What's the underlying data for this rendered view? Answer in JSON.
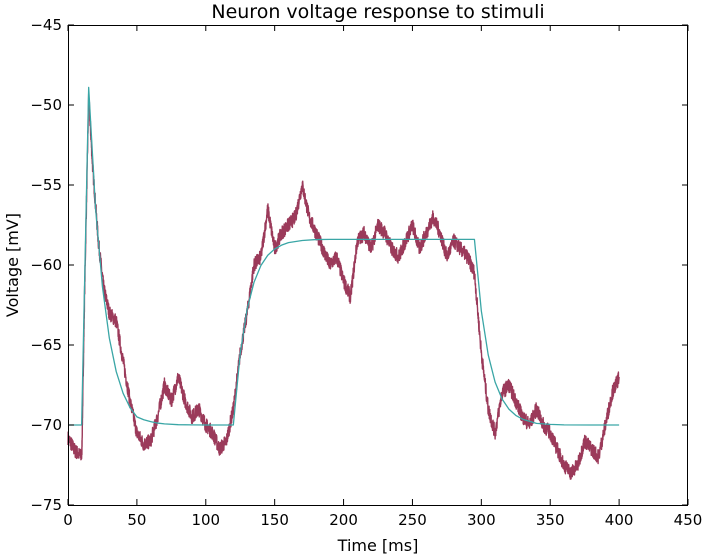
{
  "chart_data": {
    "type": "line",
    "title": "Neuron voltage response to stimuli",
    "xlabel": "Time [ms]",
    "ylabel": "Voltage [mV]",
    "xlim": [
      0,
      450
    ],
    "ylim": [
      -75,
      -45
    ],
    "xticks": [
      "0",
      "50",
      "100",
      "150",
      "200",
      "250",
      "300",
      "350",
      "400",
      "450"
    ],
    "yticks": [
      "−75",
      "−70",
      "−65",
      "−60",
      "−55",
      "−50",
      "−45"
    ],
    "grid": false,
    "legend": "none",
    "series": [
      {
        "color": "#9b3a5a",
        "style": "noisy",
        "x": [
          0,
          5,
          10,
          12,
          15,
          18,
          22,
          26,
          30,
          35,
          40,
          45,
          50,
          55,
          60,
          65,
          70,
          75,
          80,
          85,
          90,
          95,
          100,
          105,
          110,
          115,
          120,
          125,
          130,
          135,
          140,
          145,
          150,
          155,
          160,
          165,
          170,
          175,
          180,
          185,
          190,
          195,
          200,
          205,
          210,
          215,
          220,
          225,
          230,
          235,
          240,
          245,
          250,
          255,
          260,
          265,
          270,
          275,
          280,
          285,
          290,
          295,
          300,
          305,
          310,
          315,
          320,
          325,
          330,
          335,
          340,
          345,
          350,
          355,
          360,
          365,
          370,
          375,
          380,
          385,
          390,
          395,
          400
        ],
        "y": [
          -70.8,
          -71.6,
          -72.0,
          -62.0,
          -49.5,
          -54.0,
          -58.5,
          -61.5,
          -63.0,
          -63.5,
          -66.0,
          -68.5,
          -70.5,
          -71.2,
          -71.0,
          -69.5,
          -67.5,
          -68.5,
          -67.0,
          -68.5,
          -69.5,
          -69.0,
          -70.0,
          -70.5,
          -71.5,
          -71.0,
          -69.0,
          -65.5,
          -63.0,
          -60.0,
          -59.5,
          -56.5,
          -59.0,
          -58.0,
          -57.5,
          -57.0,
          -55.0,
          -57.0,
          -58.0,
          -59.0,
          -60.0,
          -59.5,
          -61.0,
          -62.0,
          -58.5,
          -58.0,
          -59.0,
          -57.5,
          -58.0,
          -59.0,
          -59.5,
          -58.5,
          -57.5,
          -59.0,
          -58.0,
          -57.0,
          -58.0,
          -59.5,
          -58.5,
          -59.0,
          -59.5,
          -60.5,
          -65.5,
          -69.0,
          -70.5,
          -68.0,
          -67.5,
          -68.5,
          -69.5,
          -70.0,
          -69.0,
          -70.0,
          -70.5,
          -71.5,
          -72.5,
          -73.0,
          -72.5,
          -71.0,
          -71.5,
          -72.0,
          -70.0,
          -68.0,
          -67.0
        ]
      },
      {
        "color": "#3aa6a6",
        "style": "smooth",
        "x": [
          0,
          9.9,
          15,
          20,
          25,
          30,
          35,
          40,
          45,
          50,
          55,
          60,
          65,
          70,
          80,
          90,
          100,
          110,
          120,
          125,
          130,
          135,
          140,
          145,
          150,
          155,
          160,
          170,
          180,
          190,
          200,
          220,
          240,
          260,
          280,
          295,
          300,
          305,
          310,
          315,
          320,
          325,
          330,
          340,
          350,
          360,
          380,
          400
        ],
        "y": [
          -70.0,
          -70.0,
          -48.9,
          -56.46,
          -61.36,
          -64.57,
          -66.66,
          -68.02,
          -68.91,
          -69.49,
          -69.67,
          -69.79,
          -69.88,
          -69.93,
          -69.98,
          -69.99,
          -70.0,
          -70.0,
          -70.0,
          -65.53,
          -62.77,
          -61.08,
          -60.03,
          -59.39,
          -59.0,
          -58.76,
          -58.6,
          -58.47,
          -58.41,
          -58.4,
          -58.4,
          -58.4,
          -58.4,
          -58.4,
          -58.4,
          -58.4,
          -62.87,
          -65.62,
          -67.32,
          -68.37,
          -69.01,
          -69.4,
          -69.64,
          -69.9,
          -69.96,
          -69.99,
          -70.0,
          -70.0
        ]
      }
    ]
  }
}
